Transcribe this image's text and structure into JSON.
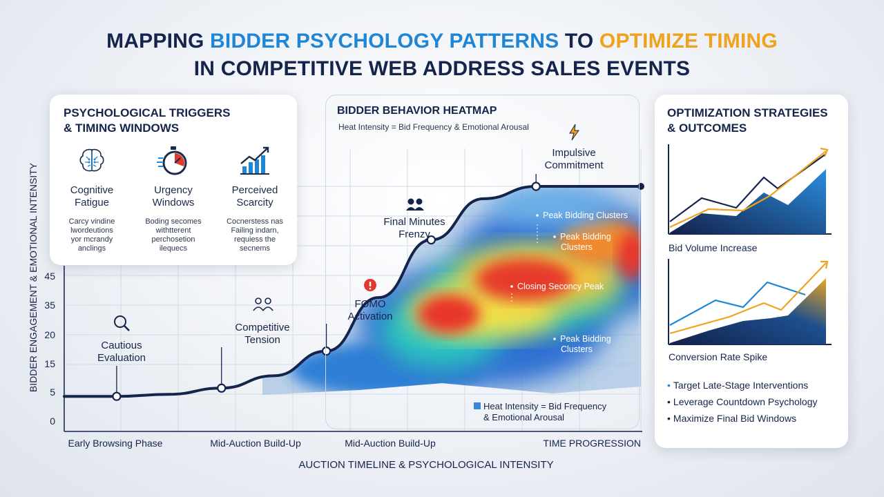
{
  "title": {
    "part1": "MAPPING ",
    "part2": "BIDDER PSYCHOLOGY PATTERNS",
    "part3": " TO ",
    "part4": "OPTIMIZE TIMING",
    "line2": "IN COMPETITIVE WEB ADDRESS SALES EVENTS"
  },
  "colors": {
    "navy": "#15244a",
    "blue": "#1f86d6",
    "orange": "#efa21c",
    "red": "#e03a2e"
  },
  "triggers": {
    "heading1": "PSYCHOLOGICAL TRIGGERS",
    "heading2": "& TIMING WINDOWS",
    "items": [
      {
        "icon": "brain-icon",
        "title1": "Cognitive",
        "title2": "Fatigue",
        "desc1": "Carcy vindine",
        "desc2": "lwordeutions",
        "desc3": "yor mcrandy",
        "desc4": "anclings"
      },
      {
        "icon": "stopwatch-icon",
        "title1": "Urgency",
        "title2": "Windows",
        "desc1": "Boding secomes",
        "desc2": "withtterent",
        "desc3": "perchosetion",
        "desc4": "ilequecs"
      },
      {
        "icon": "growth-chart-icon",
        "title1": "Perceived",
        "title2": "Scarcity",
        "desc1": "Cocnerstess nas",
        "desc2": "Failing indarn,",
        "desc3": "requiess the",
        "desc4": "secnems"
      }
    ]
  },
  "heatmap": {
    "title": "BIDDER BEHAVIOR HEATMAP",
    "subtitle": "Heat Intensity = Bid Frequency & Emotional Arousal",
    "legend1": "Heat Intensity = Bid Frequency",
    "legend2": "& Emotional Arousal",
    "clusters": [
      "Peak Bidding Clusters",
      "Peak Bidding",
      "Clusters",
      "Closing Seconcy Peak",
      "Peak Bidding",
      "Clusters"
    ]
  },
  "chart_data": {
    "type": "line",
    "ylabel": "BIDDER ENGAGEMENT & EMOTIONAL INTENSITY",
    "xlabel": "AUCTION TIMELINE & PSYCHOLOGICAL INTENSITY",
    "y_ticks": [
      "0",
      "5",
      "15",
      "20",
      "35",
      "45"
    ],
    "x_ticks": [
      "Early Browsing Phase",
      "Mid-Auction Build-Up",
      "Mid-Auction Build-Up",
      "TIME PROGRESSION"
    ],
    "curve_points": [
      6,
      6,
      6.5,
      8,
      11,
      17,
      30,
      44,
      54,
      57,
      57,
      57
    ],
    "milestones": [
      {
        "label1": "Cautious",
        "label2": "Evaluation",
        "icon": "magnifier-icon",
        "x_index": 1,
        "value": 6
      },
      {
        "label1": "Competitive",
        "label2": "Tension",
        "icon": "people-icon",
        "x_index": 3,
        "value": 8
      },
      {
        "label1": "FOMO",
        "label2": "Activation",
        "icon": "alert-icon",
        "x_index": 5,
        "value": 17
      },
      {
        "label1": "Final Minutes",
        "label2": "Frenzy",
        "icon": "group-icon",
        "x_index": 7,
        "value": 44
      },
      {
        "label1": "Impulsive",
        "label2": "Commitment",
        "icon": "lightning-icon",
        "x_index": 9,
        "value": 57
      }
    ]
  },
  "strategies": {
    "heading1": "OPTIMIZATION STRATEGIES",
    "heading2": "& OUTCOMES",
    "chart1_label": "Bid Volume Increase",
    "chart2_label": "Conversion Rate Spike",
    "bullets": [
      "Target Late-Stage Interventions",
      "Leverage Countdown Psychology",
      "Maximize Final Bid Windows"
    ]
  }
}
